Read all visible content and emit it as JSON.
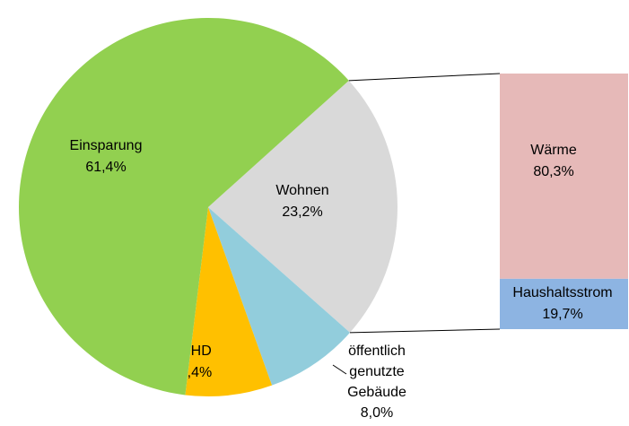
{
  "chart_data": {
    "type": "pie-of-bar",
    "pie": {
      "categories": [
        "Wohnen",
        "öffentlich genutzte Gebäude",
        "GHD",
        "Einsparung"
      ],
      "values": [
        23.2,
        8.0,
        7.4,
        61.4
      ],
      "value_labels": [
        "23,2%",
        "8,0%",
        "7,4%",
        "61,4%"
      ],
      "colors": [
        "#d9d9d9",
        "#92cddc",
        "#ffc000",
        "#92d050"
      ]
    },
    "bar": {
      "categories": [
        "Wärme",
        "Haushaltsstrom"
      ],
      "values": [
        80.3,
        19.7
      ],
      "value_labels": [
        "80,3%",
        "19,7%"
      ],
      "colors": [
        "#e6b9b8",
        "#8db4e2"
      ]
    }
  }
}
